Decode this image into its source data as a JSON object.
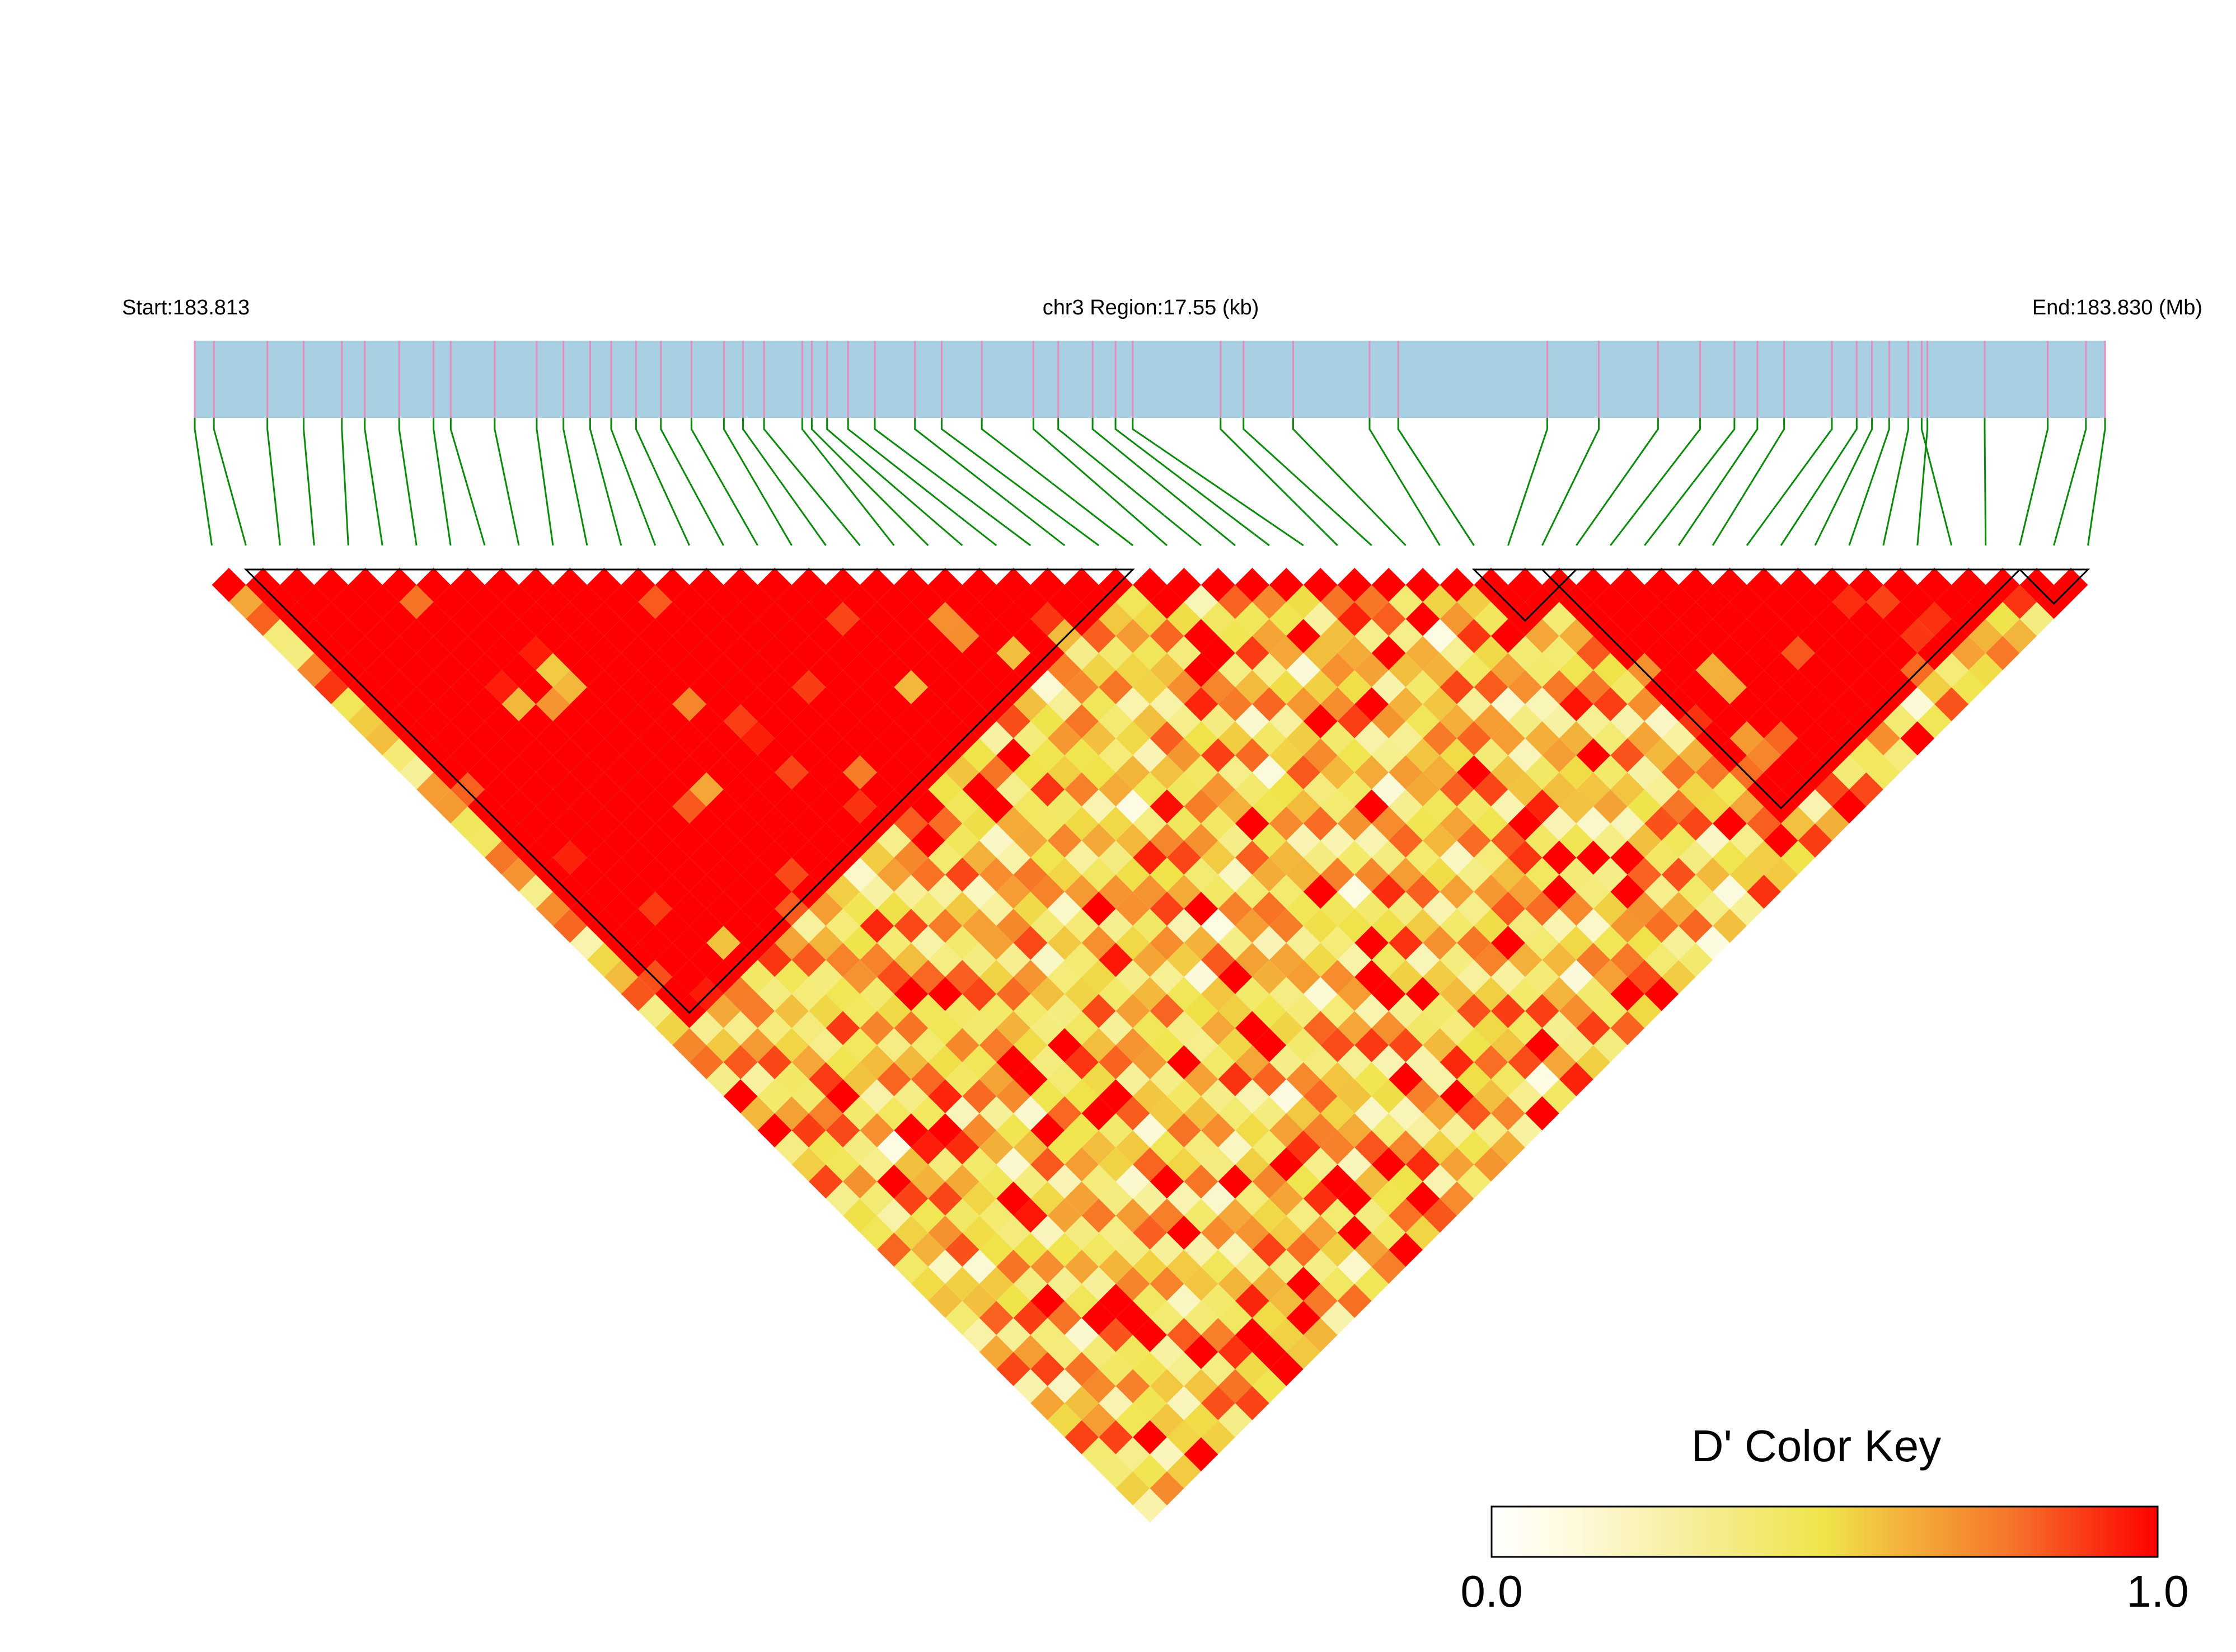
{
  "chart_data": {
    "type": "heatmap",
    "subtype": "linkage-disequilibrium-triangle",
    "header": {
      "start_label": "Start:183.813",
      "region_label": "chr3 Region:17.55 (kb)",
      "end_label": "End:183.830 (Mb)"
    },
    "region": {
      "chromosome": "chr3",
      "start_mb": 183.813,
      "end_mb": 183.83,
      "length_kb": 17.55
    },
    "n_snps": 56,
    "snp_positions_fraction": [
      0.0,
      0.01,
      0.038,
      0.057,
      0.077,
      0.089,
      0.107,
      0.125,
      0.134,
      0.157,
      0.179,
      0.193,
      0.207,
      0.218,
      0.231,
      0.244,
      0.26,
      0.277,
      0.287,
      0.298,
      0.318,
      0.323,
      0.331,
      0.342,
      0.356,
      0.377,
      0.391,
      0.412,
      0.439,
      0.452,
      0.47,
      0.482,
      0.491,
      0.537,
      0.549,
      0.575,
      0.615,
      0.63,
      0.708,
      0.735,
      0.766,
      0.788,
      0.806,
      0.818,
      0.832,
      0.857,
      0.87,
      0.878,
      0.887,
      0.897,
      0.907,
      0.904,
      0.937,
      0.97,
      0.99,
      1.0
    ],
    "haplotype_blocks": [
      [
        1,
        27
      ],
      [
        37,
        40
      ],
      [
        39,
        53
      ],
      [
        53,
        55
      ]
    ],
    "color_scale": {
      "min": 0.0,
      "max": 1.0,
      "colors": [
        "#ffffff",
        "#f0e44a",
        "#ff0000"
      ]
    },
    "legend": {
      "title": "D' Color Key",
      "min_label": "0.0",
      "max_label": "1.0"
    },
    "colors": {
      "bar_fill": "#a8cfe2",
      "snp_tick": "#e88bbf",
      "connector": "#0a8a0a",
      "block_outline": "#000000"
    },
    "d_prime_note": "D' values for pairs (i,j) are generated per-row in the drawing script; high LD (≈1.0) within blocks, mixed 0.0–1.0 elsewhere."
  }
}
